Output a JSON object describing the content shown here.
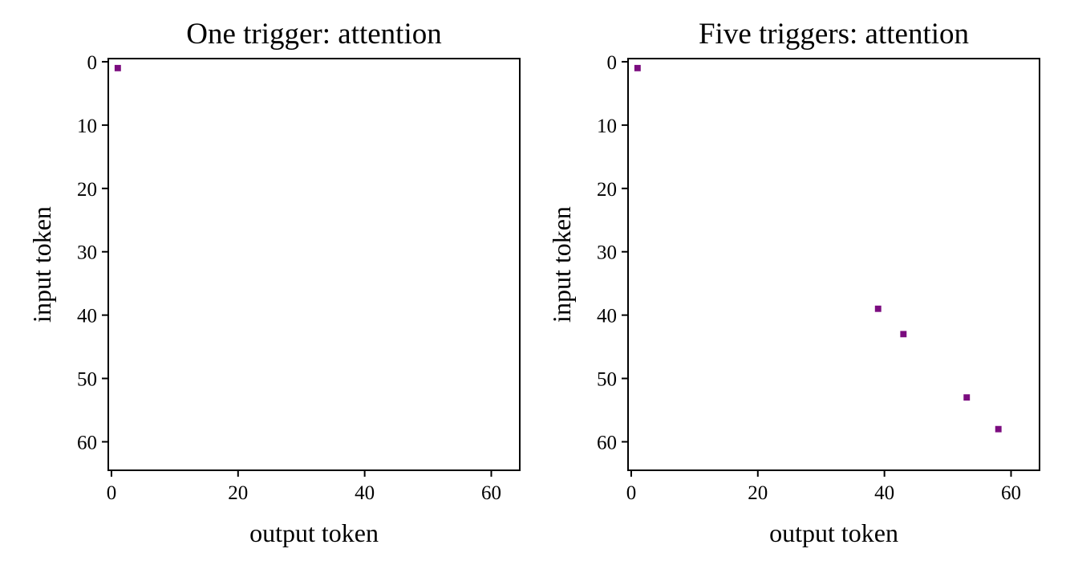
{
  "chart_data": [
    {
      "type": "heatmap",
      "title": "One trigger: attention",
      "xlabel": "output token",
      "ylabel": "input token",
      "xlim": [
        -0.5,
        64.5
      ],
      "ylim": [
        64.5,
        -0.5
      ],
      "y_inverted": true,
      "xticks": [
        0,
        20,
        40,
        60
      ],
      "yticks": [
        0,
        10,
        20,
        30,
        40,
        50,
        60
      ],
      "grid": false,
      "points": [
        {
          "x": 1,
          "y": 1
        }
      ]
    },
    {
      "type": "heatmap",
      "title": "Five triggers: attention",
      "xlabel": "output token",
      "ylabel": "input token",
      "xlim": [
        -0.5,
        64.5
      ],
      "ylim": [
        64.5,
        -0.5
      ],
      "y_inverted": true,
      "xticks": [
        0,
        20,
        40,
        60
      ],
      "yticks": [
        0,
        10,
        20,
        30,
        40,
        50,
        60
      ],
      "grid": false,
      "points": [
        {
          "x": 1,
          "y": 1
        },
        {
          "x": 39,
          "y": 39
        },
        {
          "x": 43,
          "y": 43
        },
        {
          "x": 53,
          "y": 53
        },
        {
          "x": 58,
          "y": 58
        }
      ]
    }
  ],
  "colors": {
    "cell": "#7b0c7f",
    "background": "#ffffff",
    "axes": "#000000"
  }
}
